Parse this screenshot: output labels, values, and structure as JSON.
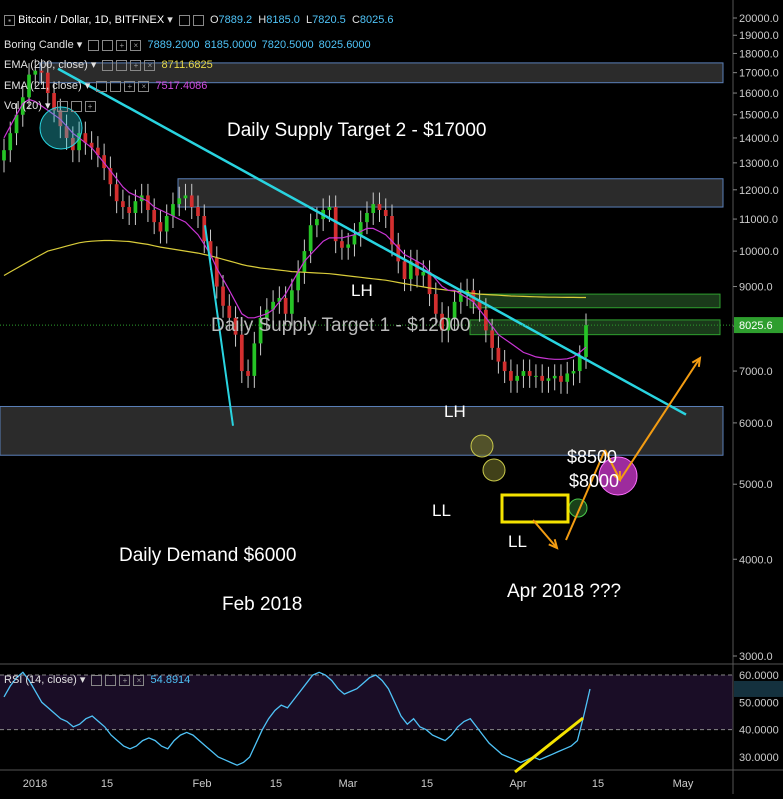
{
  "header": {
    "symbol": "Bitcoin / Dollar, 1D, BITFINEX",
    "o_label": "O",
    "o_value": "7889.2",
    "h_label": "H",
    "h_value": "8185.0",
    "l_label": "L",
    "l_value": "7820.5",
    "c_label": "C",
    "c_value": "8025.6",
    "boring_label": "Boring Candle",
    "boring_values": "7889.2000  8185.0000  7820.5000  8025.6000",
    "ema200_label": "EMA (200, close)",
    "ema200_value": "8711.6825",
    "ema21_label": "EMA (21, close)",
    "ema21_value": "7517.4086",
    "vol_label": "Vol (20)",
    "rsi_label": "RSI (14, close)",
    "rsi_value": "54.8914"
  },
  "colors": {
    "up": "#26c426",
    "down": "#d32f2f",
    "ema200": "#d9cc3a",
    "ema21": "#c935d4",
    "trendline": "#29d4e0",
    "rsi": "#4fc3f7",
    "orange": "#f39c12",
    "yellow": "#f5e300",
    "zone": "#3a3a3a"
  },
  "annotations": {
    "supply2": "Daily Supply Target 2 - $17000",
    "supply1": "Daily Supply Target 1 - $12000",
    "demand": "Daily Demand $6000",
    "feb": "Feb 2018",
    "apr": "Apr 2018 ???",
    "lh1": "LH",
    "lh2": "LH",
    "ll1": "LL",
    "ll2": "LL",
    "p8500": "$8500",
    "p8000": "$8000"
  },
  "chart_data": [
    {
      "type": "candlestick",
      "title": "Bitcoin / Dollar, 1D, BITFINEX",
      "y_ticks": [
        "20000.0",
        "19000.0",
        "18000.0",
        "17000.0",
        "16000.0",
        "15000.0",
        "14000.0",
        "13000.0",
        "12000.0",
        "11000.0",
        "10000.0",
        "9000.0",
        "8000.0",
        "7000.0",
        "6000.0",
        "5000.0",
        "4000.0",
        "3000.0"
      ],
      "y_log": true,
      "ylim": [
        2800,
        20500
      ],
      "x_ticks": [
        "2018",
        "15",
        "Feb",
        "15",
        "Mar",
        "15",
        "Apr",
        "15",
        "May"
      ],
      "last_price": "8025.6",
      "zones": [
        {
          "name": "Daily Supply Target 2",
          "low": 16500,
          "high": 17500
        },
        {
          "name": "Daily Supply Target 1",
          "low": 11400,
          "high": 12400
        },
        {
          "name": "Daily Demand",
          "low": 5450,
          "high": 6300
        }
      ],
      "close_series": [
        13500,
        14200,
        15000,
        15800,
        16900,
        17100,
        17000,
        16000,
        15200,
        14500,
        14000,
        13500,
        14200,
        13800,
        13600,
        13300,
        12800,
        12200,
        11600,
        11400,
        11200,
        11600,
        11800,
        11300,
        10900,
        10600,
        11100,
        11500,
        11700,
        11800,
        11400,
        11100,
        10300,
        9800,
        9000,
        8500,
        8200,
        7800,
        7000,
        6900,
        7600,
        8200,
        8400,
        8600,
        8700,
        8300,
        8900,
        9400,
        10000,
        10800,
        11000,
        11300,
        11400,
        10300,
        10100,
        10200,
        10500,
        10900,
        11200,
        11500,
        11300,
        11100,
        10200,
        9700,
        9200,
        9700,
        9300,
        9400,
        8800,
        8300,
        7900,
        8200,
        8600,
        8800,
        8900,
        8600,
        8400,
        7900,
        7500,
        7200,
        7000,
        6800,
        6900,
        7000,
        6900,
        6900,
        6800,
        6850,
        6900,
        6780,
        6950,
        7000,
        7300,
        8025.6
      ],
      "ema200": [
        9300,
        9400,
        9500,
        9600,
        9700,
        9800,
        9900,
        10000,
        10050,
        10100,
        10150,
        10200,
        10250,
        10280,
        10300,
        10310,
        10320,
        10320,
        10310,
        10300,
        10290,
        10260,
        10230,
        10200,
        10160,
        10120,
        10090,
        10060,
        10030,
        10000,
        9970,
        9940,
        9900,
        9860,
        9810,
        9760,
        9710,
        9660,
        9610,
        9570,
        9540,
        9510,
        9490,
        9470,
        9450,
        9430,
        9410,
        9400,
        9390,
        9380,
        9370,
        9360,
        9350,
        9330,
        9310,
        9290,
        9270,
        9250,
        9230,
        9210,
        9190,
        9170,
        9140,
        9110,
        9080,
        9050,
        9020,
        8990,
        8960,
        8940,
        8920,
        8900,
        8880,
        8860,
        8840,
        8820,
        8800,
        8790,
        8780,
        8770,
        8760,
        8750,
        8745,
        8740,
        8735,
        8730,
        8725,
        8720,
        8718,
        8716,
        8714,
        8713,
        8712,
        8711.68
      ],
      "ema21": [
        14000,
        14500,
        15000,
        15500,
        15700,
        15600,
        15400,
        15200,
        15000,
        14800,
        14500,
        14200,
        14000,
        13800,
        13600,
        13300,
        13000,
        12700,
        12400,
        12100,
        11900,
        11800,
        11700,
        11600,
        11400,
        11300,
        11200,
        11100,
        11000,
        10900,
        10700,
        10500,
        10200,
        9900,
        9500,
        9200,
        8900,
        8600,
        8300,
        8200,
        8200,
        8250,
        8300,
        8400,
        8600,
        8800,
        9100,
        9400,
        9700,
        9900,
        10100,
        10300,
        10400,
        10400,
        10400,
        10450,
        10500,
        10600,
        10700,
        10700,
        10600,
        10500,
        10300,
        10100,
        9900,
        9800,
        9700,
        9600,
        9400,
        9200,
        9000,
        8900,
        8900,
        8800,
        8700,
        8600,
        8400,
        8200,
        8000,
        7800,
        7700,
        7600,
        7500,
        7400,
        7350,
        7300,
        7280,
        7260,
        7250,
        7250,
        7260,
        7300,
        7400,
        7517.41
      ]
    },
    {
      "type": "line",
      "title": "RSI (14, close)",
      "y_ticks": [
        "60.0000",
        "50.0000",
        "40.0000",
        "30.0000"
      ],
      "ylim": [
        25,
        62
      ],
      "values": [
        52,
        56,
        59,
        61,
        58,
        54,
        50,
        48,
        46,
        44,
        43,
        41,
        42,
        44,
        45,
        43,
        41,
        38,
        36,
        34,
        33,
        34,
        36,
        37,
        36,
        34,
        33,
        36,
        38,
        39,
        38,
        36,
        34,
        32,
        30,
        29,
        28,
        27,
        28,
        30,
        35,
        40,
        44,
        47,
        49,
        48,
        51,
        54,
        57,
        60,
        61,
        60,
        58,
        55,
        53,
        54,
        55,
        57,
        59,
        60,
        58,
        55,
        50,
        45,
        42,
        44,
        41,
        40,
        38,
        37,
        36,
        38,
        41,
        43,
        44,
        41,
        38,
        35,
        33,
        31,
        30,
        29,
        28,
        29,
        30,
        29,
        30,
        31,
        32,
        33,
        34,
        36,
        45,
        54.89
      ]
    }
  ]
}
